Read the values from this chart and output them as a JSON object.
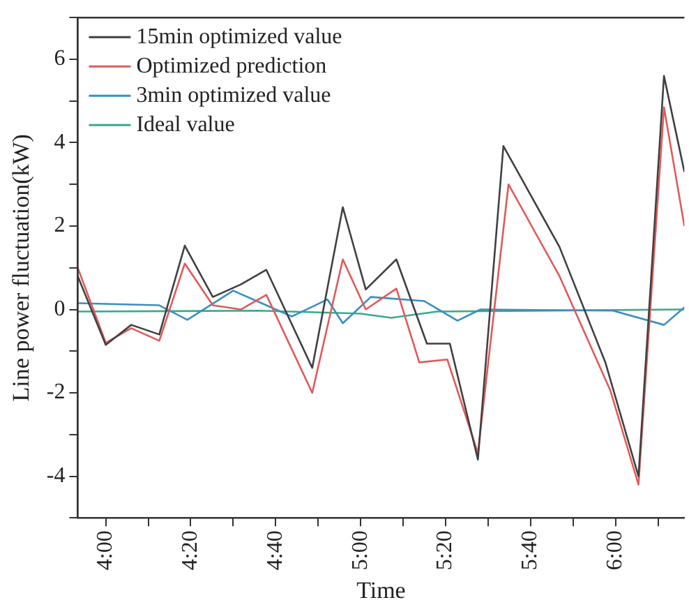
{
  "chart_data": {
    "type": "line",
    "xlabel": "Time",
    "ylabel": "Line power fluctuation(kW)",
    "xlim": [
      3.89,
      6.27
    ],
    "ylim": [
      -5,
      7
    ],
    "xticks": [
      {
        "value": 4,
        "label": "4:00"
      },
      {
        "value": 4.1667,
        "label": null
      },
      {
        "value": 4.3333,
        "label": "4:20"
      },
      {
        "value": 4.5,
        "label": null
      },
      {
        "value": 4.6667,
        "label": "4:40"
      },
      {
        "value": 4.8333,
        "label": null
      },
      {
        "value": 5,
        "label": "5:00"
      },
      {
        "value": 5.1667,
        "label": null
      },
      {
        "value": 5.3333,
        "label": "5:20"
      },
      {
        "value": 5.5,
        "label": null
      },
      {
        "value": 5.6667,
        "label": "5:40"
      },
      {
        "value": 5.8333,
        "label": null
      },
      {
        "value": 6,
        "label": "6:00"
      },
      {
        "value": 6.1667,
        "label": null
      }
    ],
    "yticks": [
      {
        "value": -5,
        "label": null
      },
      -4,
      {
        "value": -3,
        "label": null
      },
      -2,
      {
        "value": -1,
        "label": null
      },
      0,
      {
        "value": 1,
        "label": null
      },
      2,
      {
        "value": 3,
        "label": null
      },
      4,
      {
        "value": 5,
        "label": null
      },
      6,
      {
        "value": 7,
        "label": null
      }
    ],
    "grid": false,
    "legend": "top left",
    "marker": "none",
    "line_style": "solid",
    "series": [
      {
        "name": "15min optimized value",
        "color": "#404040",
        "x": [
          3.89,
          4.0,
          4.1,
          4.21,
          4.31,
          4.42,
          4.53,
          4.63,
          4.81,
          4.93,
          5.02,
          5.14,
          5.26,
          5.35,
          5.46,
          5.56,
          5.78,
          5.96,
          6.09,
          6.19,
          6.27
        ],
        "values": [
          0.8,
          -0.85,
          -0.37,
          -0.6,
          1.53,
          0.3,
          0.6,
          0.95,
          -1.4,
          2.45,
          0.48,
          1.2,
          -0.82,
          -0.82,
          -3.6,
          3.92,
          1.5,
          -1.27,
          -4.0,
          5.6,
          3.3
        ]
      },
      {
        "name": "Optimized prediction",
        "color": "#e05a5a",
        "x": [
          3.89,
          4.0,
          4.1,
          4.21,
          4.31,
          4.42,
          4.53,
          4.63,
          4.81,
          4.93,
          5.02,
          5.14,
          5.23,
          5.34,
          5.46,
          5.58,
          5.78,
          5.98,
          6.09,
          6.19,
          6.27
        ],
        "values": [
          1.0,
          -0.8,
          -0.45,
          -0.75,
          1.1,
          0.1,
          0.0,
          0.35,
          -2.0,
          1.2,
          0.0,
          0.5,
          -1.27,
          -1.2,
          -3.45,
          3.0,
          0.8,
          -1.95,
          -4.2,
          4.85,
          2.0
        ]
      },
      {
        "name": "3min optimized value",
        "color": "#3a8fc0",
        "x": [
          3.89,
          4.21,
          4.32,
          4.5,
          4.63,
          4.73,
          4.87,
          4.93,
          5.04,
          5.25,
          5.38,
          5.47,
          5.99,
          6.19,
          6.27
        ],
        "values": [
          0.15,
          0.1,
          -0.25,
          0.45,
          0.1,
          -0.17,
          0.24,
          -0.33,
          0.3,
          0.2,
          -0.27,
          0.0,
          -0.03,
          -0.37,
          0.05
        ]
      },
      {
        "name": "Ideal value",
        "color": "#3aaa8a",
        "x": [
          3.89,
          4.6,
          5.0,
          5.12,
          5.3,
          6.27
        ],
        "values": [
          -0.05,
          -0.03,
          -0.1,
          -0.2,
          -0.05,
          0.0
        ]
      }
    ]
  }
}
